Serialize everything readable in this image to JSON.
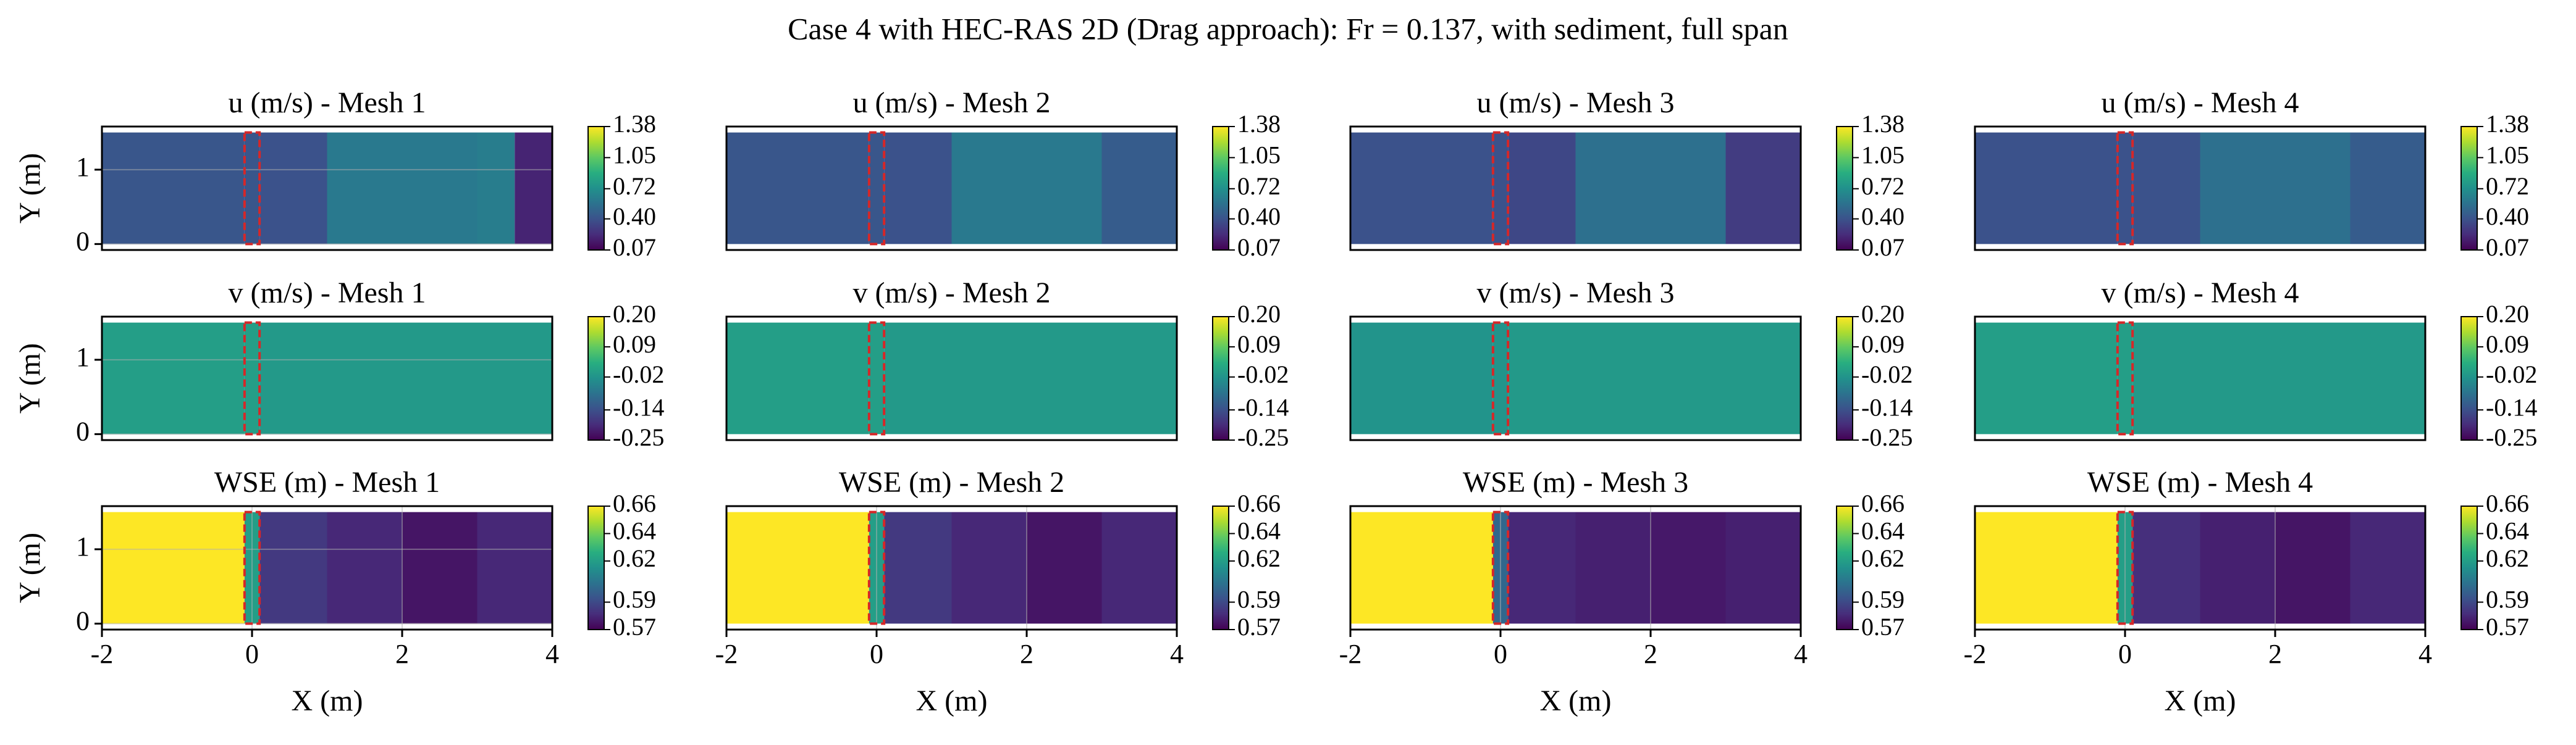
{
  "title": "Case 4 with HEC-RAS 2D (Drag approach): Fr = 0.137, with sediment, full span",
  "chart_data": [
    {
      "type": "heatmap",
      "title": "u (m/s) - Mesh 1",
      "ylabel": "Y (m)",
      "xlim": [
        -2,
        4
      ],
      "ylim": [
        -0.08,
        1.58
      ],
      "yticks": [
        0,
        1
      ],
      "grid": true,
      "y_range": [
        0,
        1.5
      ],
      "x_edges": [
        -2,
        -0.1,
        0.1,
        1,
        3,
        3.5,
        4
      ],
      "values": [
        0.42,
        0.42,
        0.4,
        0.6,
        0.62,
        0.2
      ],
      "clim": [
        0.07,
        1.38
      ],
      "cbar_ticks": [
        0.07,
        {
          "value": 0.4,
          "label": "0.40"
        },
        0.72,
        1.05,
        1.38
      ],
      "box": {
        "x": [
          -0.1,
          0.1
        ],
        "y": [
          0,
          1.5
        ],
        "color": "#d62728"
      }
    },
    {
      "type": "heatmap",
      "title": "u (m/s) - Mesh 2",
      "xlim": [
        -2,
        4
      ],
      "ylim": [
        -0.08,
        1.58
      ],
      "grid": true,
      "y_range": [
        0,
        1.5
      ],
      "x_edges": [
        -2,
        -0.1,
        0.1,
        1,
        3,
        4
      ],
      "values": [
        0.42,
        0.42,
        0.4,
        0.6,
        0.45
      ],
      "clim": [
        0.07,
        1.38
      ],
      "cbar_ticks": [
        0.07,
        {
          "value": 0.4,
          "label": "0.40"
        },
        0.72,
        1.05,
        1.38
      ],
      "box": {
        "x": [
          -0.1,
          0.1
        ],
        "y": [
          0,
          1.5
        ],
        "color": "#d62728"
      }
    },
    {
      "type": "heatmap",
      "title": "u (m/s) - Mesh 3",
      "xlim": [
        -2,
        4
      ],
      "ylim": [
        -0.08,
        1.58
      ],
      "grid": true,
      "y_range": [
        0,
        1.5
      ],
      "x_edges": [
        -2,
        -0.1,
        0.1,
        1,
        3,
        4
      ],
      "values": [
        0.4,
        0.4,
        0.35,
        0.55,
        0.3
      ],
      "clim": [
        0.07,
        1.38
      ],
      "cbar_ticks": [
        0.07,
        {
          "value": 0.4,
          "label": "0.40"
        },
        0.72,
        1.05,
        1.38
      ],
      "box": {
        "x": [
          -0.1,
          0.1
        ],
        "y": [
          0,
          1.5
        ],
        "color": "#d62728"
      }
    },
    {
      "type": "heatmap",
      "title": "u (m/s) - Mesh 4",
      "xlim": [
        -2,
        4
      ],
      "ylim": [
        -0.08,
        1.58
      ],
      "grid": true,
      "y_range": [
        0,
        1.5
      ],
      "x_edges": [
        -2,
        -0.1,
        0.1,
        1,
        3,
        4
      ],
      "values": [
        0.4,
        0.4,
        0.4,
        0.55,
        0.45
      ],
      "clim": [
        0.07,
        1.38
      ],
      "cbar_ticks": [
        0.07,
        {
          "value": 0.4,
          "label": "0.40"
        },
        0.72,
        1.05,
        1.38
      ],
      "box": {
        "x": [
          -0.1,
          0.1
        ],
        "y": [
          0,
          1.5
        ],
        "color": "#d62728"
      }
    },
    {
      "type": "heatmap",
      "title": "v (m/s) - Mesh 1",
      "ylabel": "Y (m)",
      "xlim": [
        -2,
        4
      ],
      "ylim": [
        -0.08,
        1.58
      ],
      "yticks": [
        0,
        1
      ],
      "grid": true,
      "y_range": [
        0,
        1.5
      ],
      "x_edges": [
        -2,
        -0.1,
        0.1,
        4
      ],
      "values": [
        0,
        0,
        -0.01
      ],
      "clim": [
        -0.25,
        0.2
      ],
      "cbar_ticks": [
        -0.25,
        -0.14,
        -0.02,
        0.09,
        {
          "value": 0.2,
          "label": "0.20"
        }
      ],
      "box": {
        "x": [
          -0.1,
          0.1
        ],
        "y": [
          0,
          1.5
        ],
        "color": "#d62728"
      }
    },
    {
      "type": "heatmap",
      "title": "v (m/s) - Mesh 2",
      "xlim": [
        -2,
        4
      ],
      "ylim": [
        -0.08,
        1.58
      ],
      "grid": true,
      "y_range": [
        0,
        1.5
      ],
      "x_edges": [
        -2,
        -0.1,
        0.1,
        4
      ],
      "values": [
        0,
        0,
        -0.01
      ],
      "clim": [
        -0.25,
        0.2
      ],
      "cbar_ticks": [
        -0.25,
        -0.14,
        -0.02,
        0.09,
        {
          "value": 0.2,
          "label": "0.20"
        }
      ],
      "box": {
        "x": [
          -0.1,
          0.1
        ],
        "y": [
          0,
          1.5
        ],
        "color": "#d62728"
      }
    },
    {
      "type": "heatmap",
      "title": "v (m/s) - Mesh 3",
      "xlim": [
        -2,
        4
      ],
      "ylim": [
        -0.08,
        1.58
      ],
      "grid": true,
      "y_range": [
        0,
        1.5
      ],
      "x_edges": [
        -2,
        -0.1,
        0.1,
        4
      ],
      "values": [
        -0.02,
        -0.02,
        -0.01
      ],
      "clim": [
        -0.25,
        0.2
      ],
      "cbar_ticks": [
        -0.25,
        -0.14,
        -0.02,
        0.09,
        {
          "value": 0.2,
          "label": "0.20"
        }
      ],
      "box": {
        "x": [
          -0.1,
          0.1
        ],
        "y": [
          0,
          1.5
        ],
        "color": "#d62728"
      }
    },
    {
      "type": "heatmap",
      "title": "v (m/s) - Mesh 4",
      "xlim": [
        -2,
        4
      ],
      "ylim": [
        -0.08,
        1.58
      ],
      "grid": true,
      "y_range": [
        0,
        1.5
      ],
      "x_edges": [
        -2,
        -0.1,
        0.1,
        4
      ],
      "values": [
        0,
        0,
        -0.01
      ],
      "clim": [
        -0.25,
        0.2
      ],
      "cbar_ticks": [
        -0.25,
        -0.14,
        -0.02,
        0.09,
        {
          "value": 0.2,
          "label": "0.20"
        }
      ],
      "box": {
        "x": [
          -0.1,
          0.1
        ],
        "y": [
          0,
          1.5
        ],
        "color": "#d62728"
      }
    },
    {
      "type": "heatmap",
      "title": "WSE (m) - Mesh 1",
      "ylabel": "Y (m)",
      "xlabel": "X (m)",
      "xlim": [
        -2,
        4
      ],
      "ylim": [
        -0.08,
        1.58
      ],
      "xticks": [
        -2,
        0,
        2,
        4
      ],
      "yticks": [
        0,
        1
      ],
      "grid": true,
      "y_range": [
        0,
        1.5
      ],
      "x_edges": [
        -2,
        -0.1,
        0.1,
        1,
        2,
        3,
        4
      ],
      "values": [
        0.66,
        0.62,
        0.585,
        0.58,
        0.575,
        0.58
      ],
      "clim": [
        0.57,
        0.66
      ],
      "cbar_ticks": [
        0.57,
        0.59,
        0.62,
        0.64,
        0.66
      ],
      "box": {
        "x": [
          -0.1,
          0.1
        ],
        "y": [
          0,
          1.5
        ],
        "color": "#d62728"
      }
    },
    {
      "type": "heatmap",
      "title": "WSE (m) - Mesh 2",
      "xlabel": "X (m)",
      "xlim": [
        -2,
        4
      ],
      "ylim": [
        -0.08,
        1.58
      ],
      "xticks": [
        -2,
        0,
        2,
        4
      ],
      "grid": true,
      "y_range": [
        0,
        1.5
      ],
      "x_edges": [
        -2,
        -0.1,
        0.1,
        1,
        2,
        3,
        4
      ],
      "values": [
        0.66,
        0.62,
        0.585,
        0.58,
        0.575,
        0.58
      ],
      "clim": [
        0.57,
        0.66
      ],
      "cbar_ticks": [
        0.57,
        0.59,
        0.62,
        0.64,
        0.66
      ],
      "box": {
        "x": [
          -0.1,
          0.1
        ],
        "y": [
          0,
          1.5
        ],
        "color": "#d62728"
      }
    },
    {
      "type": "heatmap",
      "title": "WSE (m) - Mesh 3",
      "xlabel": "X (m)",
      "xlim": [
        -2,
        4
      ],
      "ylim": [
        -0.08,
        1.58
      ],
      "xticks": [
        -2,
        0,
        2,
        4
      ],
      "grid": true,
      "y_range": [
        0,
        1.5
      ],
      "x_edges": [
        -2,
        -0.1,
        0.1,
        1,
        2,
        3,
        4
      ],
      "values": [
        0.66,
        0.6,
        0.58,
        0.578,
        0.576,
        0.578
      ],
      "clim": [
        0.57,
        0.66
      ],
      "cbar_ticks": [
        0.57,
        0.59,
        0.62,
        0.64,
        0.66
      ],
      "box": {
        "x": [
          -0.1,
          0.1
        ],
        "y": [
          0,
          1.5
        ],
        "color": "#d62728"
      }
    },
    {
      "type": "heatmap",
      "title": "WSE (m) - Mesh 4",
      "xlabel": "X (m)",
      "xlim": [
        -2,
        4
      ],
      "ylim": [
        -0.08,
        1.58
      ],
      "xticks": [
        -2,
        0,
        2,
        4
      ],
      "grid": true,
      "y_range": [
        0,
        1.5
      ],
      "x_edges": [
        -2,
        -0.1,
        0.1,
        1,
        2,
        3,
        4
      ],
      "values": [
        0.66,
        0.62,
        0.582,
        0.578,
        0.575,
        0.58
      ],
      "clim": [
        0.57,
        0.66
      ],
      "cbar_ticks": [
        0.57,
        0.59,
        0.62,
        0.64,
        0.66
      ],
      "box": {
        "x": [
          -0.1,
          0.1
        ],
        "y": [
          0,
          1.5
        ],
        "color": "#d62728"
      }
    }
  ]
}
